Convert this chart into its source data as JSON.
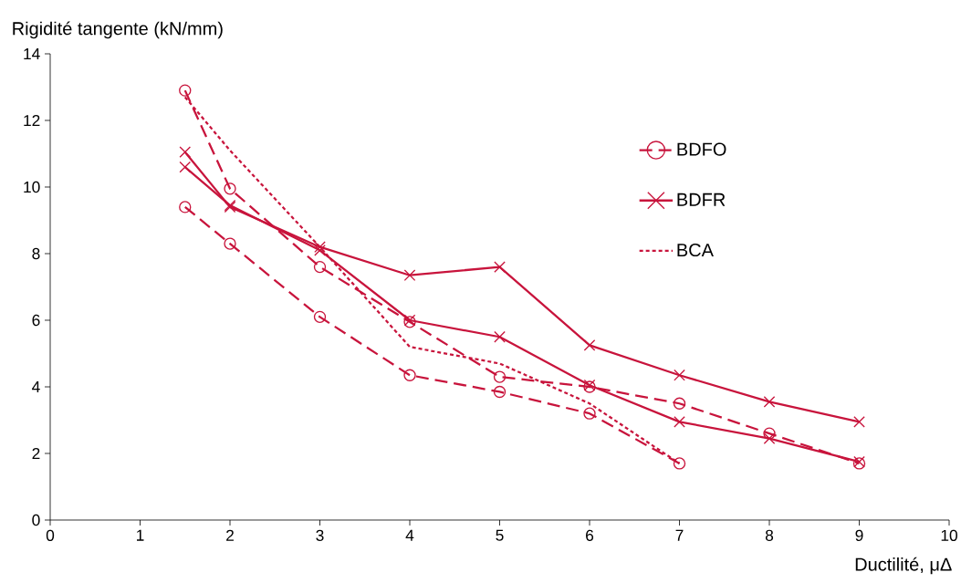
{
  "chart_data": {
    "type": "line",
    "xlabel": "Ductilité, μΔ",
    "ylabel": "Rigidité tangente (kN/mm)",
    "xlim": [
      0,
      10
    ],
    "ylim": [
      0,
      14
    ],
    "xticks": [
      0,
      1,
      2,
      3,
      4,
      5,
      6,
      7,
      8,
      9,
      10
    ],
    "yticks": [
      0,
      2,
      4,
      6,
      8,
      10,
      12,
      14
    ],
    "grid": false,
    "legend": "right",
    "series": [
      {
        "name": "BDFO",
        "color": "#c8143c",
        "marker": "circle",
        "line_style": "dashed",
        "x": [
          1.5,
          2,
          3,
          4,
          5,
          6,
          7,
          8,
          9
        ],
        "values": [
          12.9,
          9.95,
          7.6,
          5.95,
          4.3,
          4.0,
          3.5,
          2.6,
          1.7
        ]
      },
      {
        "name": "BDFR",
        "color": "#c8143c",
        "marker": "cross",
        "line_style": "solid",
        "x": [
          1.5,
          2,
          3,
          4,
          5,
          6,
          7,
          8,
          9
        ],
        "values": [
          11.05,
          9.4,
          8.2,
          7.35,
          7.6,
          5.25,
          4.35,
          3.55,
          2.95
        ]
      },
      {
        "name": "BCA",
        "color": "#c8143c",
        "marker": "none",
        "line_style": "dotted",
        "x": [
          1.5,
          2,
          3,
          4,
          5,
          6,
          7
        ],
        "values": [
          12.7,
          11.1,
          8.2,
          5.2,
          4.7,
          3.5,
          1.7
        ]
      },
      {
        "color": "#c8143c",
        "marker": "circle",
        "line_style": "dashed",
        "x": [
          1.5,
          2,
          3,
          4,
          5,
          6,
          7
        ],
        "values": [
          9.4,
          8.3,
          6.1,
          4.35,
          3.85,
          3.2,
          1.7
        ]
      },
      {
        "color": "#c8143c",
        "marker": "cross",
        "line_style": "solid",
        "x": [
          1.5,
          2,
          3,
          4,
          5,
          6,
          7,
          8,
          9
        ],
        "values": [
          10.6,
          9.45,
          8.1,
          6.0,
          5.5,
          4.05,
          2.95,
          2.45,
          1.75
        ]
      }
    ]
  }
}
